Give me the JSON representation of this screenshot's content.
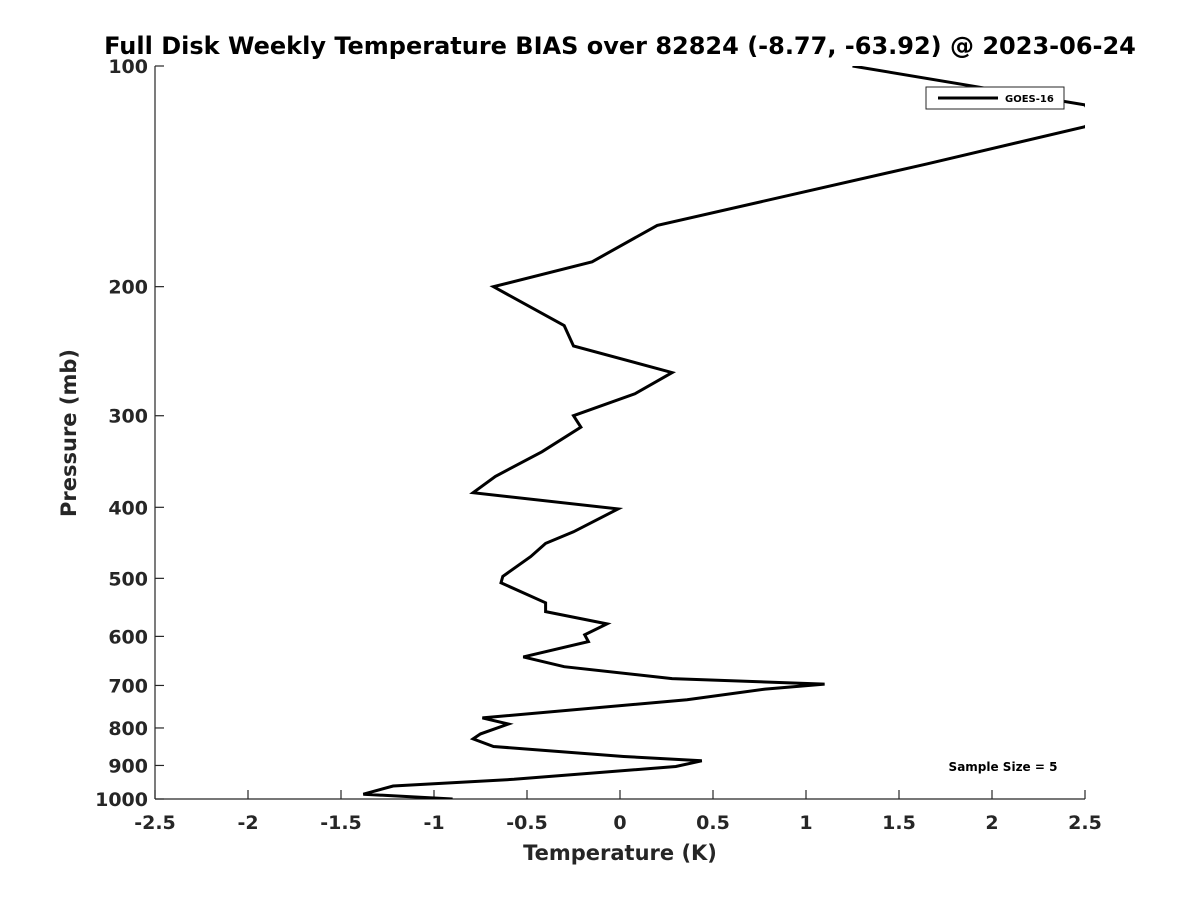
{
  "chart_data": {
    "type": "line",
    "title": "Full Disk Weekly Temperature BIAS over 82824 (-8.77, -63.92) @ 2023-06-24",
    "xlabel": "Temperature (K)",
    "ylabel": "Pressure (mb)",
    "xlim": [
      -2.5,
      2.5
    ],
    "ylim": [
      100,
      1000
    ],
    "y_scale": "log",
    "y_reversed": true,
    "grid": false,
    "x_ticks": [
      -2.5,
      -2,
      -1.5,
      -1,
      -0.5,
      0,
      0.5,
      1,
      1.5,
      2,
      2.5
    ],
    "x_tick_labels": [
      "-2.5",
      "-2",
      "-1.5",
      "-1",
      "-0.5",
      "0",
      "0.5",
      "1",
      "1.5",
      "2",
      "2.5"
    ],
    "y_ticks": [
      100,
      200,
      300,
      400,
      500,
      600,
      700,
      800,
      900,
      1000
    ],
    "y_tick_labels": [
      "100",
      "200",
      "300",
      "400",
      "500",
      "600",
      "700",
      "800",
      "900",
      "1000"
    ],
    "legend": {
      "placement": "top-right",
      "entries": [
        "GOES-16"
      ]
    },
    "annotation": "Sample Size = 5",
    "series_color": "#000000",
    "series": [
      {
        "name": "GOES-16",
        "x": [
          1.25,
          2.5,
          2.55,
          2.5,
          1.65,
          0.2,
          -0.15,
          -0.68,
          -0.3,
          -0.25,
          0.28,
          0.08,
          -0.25,
          -0.21,
          -0.42,
          -0.67,
          -0.79,
          -0.01,
          -0.25,
          -0.4,
          -0.48,
          -0.63,
          -0.64,
          -0.4,
          -0.4,
          -0.07,
          -0.19,
          -0.17,
          -0.52,
          -0.3,
          0.28,
          1.1,
          0.78,
          0.36,
          -0.74,
          -0.6,
          -0.75,
          -0.79,
          -0.68,
          0.02,
          0.44,
          0.3,
          -0.57,
          -1.22,
          -1.38,
          -0.9
        ],
        "y": [
          100,
          113,
          118,
          121,
          136,
          165,
          185,
          200,
          226,
          241,
          262,
          280,
          300,
          311,
          336,
          363,
          382,
          402,
          432,
          448,
          467,
          497,
          507,
          540,
          555,
          577,
          597,
          610,
          640,
          660,
          685,
          697,
          708,
          732,
          775,
          790,
          815,
          828,
          848,
          875,
          887,
          903,
          940,
          960,
          985,
          1000
        ]
      }
    ]
  }
}
